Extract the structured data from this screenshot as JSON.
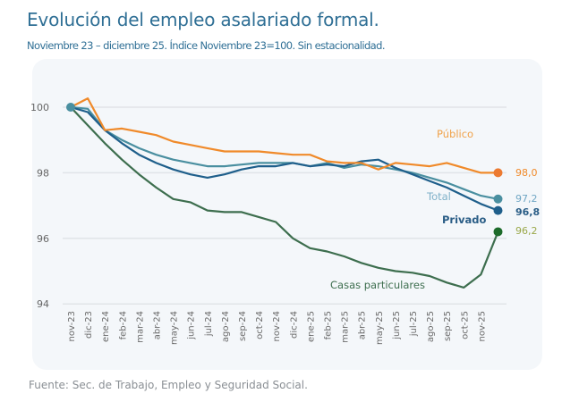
{
  "title": "Evolución del empleo asalariado formal.",
  "subtitle": "Noviembre 23 – diciembre 25. Índice Noviembre 23=100. Sin estacionalidad.",
  "source": "Fuente: Sec. de Trabajo, Empleo y Seguridad Social.",
  "chart_data": {
    "type": "line",
    "title": "Evolución del empleo asalariado formal.",
    "xlabel": "",
    "ylabel": "",
    "ylim": [
      94,
      100.4
    ],
    "yticks": [
      "100",
      "98",
      "96",
      "94"
    ],
    "grid": true,
    "x": [
      "nov-23",
      "dic-23",
      "ene-24",
      "feb-24",
      "mar-24",
      "abr-24",
      "may-24",
      "jun-24",
      "jul-24",
      "ago-24",
      "sep-24",
      "oct-24",
      "nov-24",
      "dic-24",
      "ene-25",
      "feb-25",
      "mar-25",
      "abr-25",
      "may-25",
      "jun-25",
      "jul-25",
      "ago-25",
      "sep-25",
      "oct-25",
      "nov-25",
      "dic-25"
    ],
    "xtick_labels": [
      "nov-23",
      "dic-23",
      "ene-24",
      "feb-24",
      "mar-24",
      "abr-24",
      "may-24",
      "jun-24",
      "jul-24",
      "ago-24",
      "sep-24",
      "oct-24",
      "nov-24",
      "dic-24",
      "ene-25",
      "feb-25",
      "mar-25",
      "abr-25",
      "may-25",
      "jun-25",
      "jul-25",
      "ago-25",
      "sep-25",
      "oct-25",
      "nov-25"
    ],
    "series": [
      {
        "name": "Público",
        "color": "#f08a2a",
        "end_label": "98,0",
        "end_label_color": "#f08a2a",
        "values": [
          100,
          100.27,
          99.3,
          99.35,
          99.25,
          99.15,
          98.95,
          98.85,
          98.75,
          98.65,
          98.65,
          98.65,
          98.6,
          98.55,
          98.55,
          98.35,
          98.3,
          98.3,
          98.1,
          98.3,
          98.25,
          98.2,
          98.3,
          98.15,
          98.0,
          98.0
        ]
      },
      {
        "name": "Total",
        "color": "#4a8fa0",
        "end_label": "97,2",
        "end_label_color": "#6fa6c4",
        "values": [
          100,
          99.95,
          99.3,
          99.0,
          98.75,
          98.55,
          98.4,
          98.3,
          98.2,
          98.2,
          98.25,
          98.3,
          98.3,
          98.3,
          98.2,
          98.3,
          98.15,
          98.25,
          98.2,
          98.1,
          98.0,
          97.85,
          97.7,
          97.5,
          97.3,
          97.2
        ]
      },
      {
        "name": "Privado",
        "color": "#1f5f8b",
        "end_label": "96,8",
        "end_label_color": "#2a5d86",
        "values": [
          100,
          99.85,
          99.3,
          98.9,
          98.55,
          98.3,
          98.1,
          97.95,
          97.85,
          97.95,
          98.1,
          98.2,
          98.2,
          98.3,
          98.2,
          98.25,
          98.2,
          98.35,
          98.4,
          98.15,
          97.95,
          97.75,
          97.55,
          97.3,
          97.05,
          96.85
        ]
      },
      {
        "name": "Casas particulares",
        "color": "#3d6e4e",
        "end_label": "96,2",
        "end_label_color": "#9aa84a",
        "values": [
          100,
          99.45,
          98.9,
          98.4,
          97.95,
          97.55,
          97.2,
          97.1,
          96.85,
          96.8,
          96.8,
          96.65,
          96.5,
          96.0,
          95.7,
          95.6,
          95.45,
          95.25,
          95.1,
          95.0,
          94.95,
          94.85,
          94.65,
          94.5,
          94.9,
          96.2
        ]
      }
    ]
  }
}
